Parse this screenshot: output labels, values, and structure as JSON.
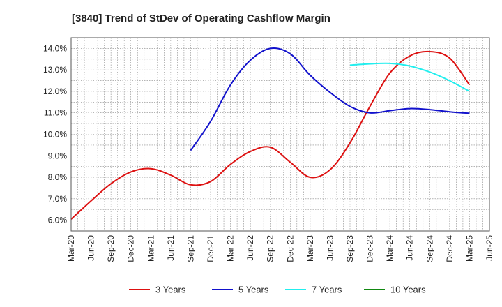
{
  "chart_data": {
    "type": "line",
    "title": "[3840]  Trend of StDev of Operating Cashflow Margin",
    "xlabel": "",
    "ylabel": "",
    "ylim": [
      5.5,
      14.5
    ],
    "y_ticks": [
      6.0,
      7.0,
      8.0,
      9.0,
      10.0,
      11.0,
      12.0,
      13.0,
      14.0
    ],
    "y_tick_labels": [
      "6.0%",
      "7.0%",
      "8.0%",
      "9.0%",
      "10.0%",
      "11.0%",
      "12.0%",
      "13.0%",
      "14.0%"
    ],
    "x_tick_labels": [
      "Mar-20",
      "Jun-20",
      "Sep-20",
      "Dec-20",
      "Mar-21",
      "Jun-21",
      "Sep-21",
      "Dec-21",
      "Mar-22",
      "Jun-22",
      "Sep-22",
      "Dec-22",
      "Mar-23",
      "Jun-23",
      "Sep-23",
      "Dec-23",
      "Mar-24",
      "Jun-24",
      "Sep-24",
      "Dec-24",
      "Mar-25",
      "Jun-25"
    ],
    "grid": true,
    "legend_position": "bottom",
    "series": [
      {
        "name": "3 Years",
        "color": "#dd1111",
        "points": [
          [
            "Mar-20",
            6.05
          ],
          [
            "Jun-20",
            6.9
          ],
          [
            "Sep-20",
            7.7
          ],
          [
            "Dec-20",
            8.25
          ],
          [
            "Mar-21",
            8.4
          ],
          [
            "Jun-21",
            8.1
          ],
          [
            "Sep-21",
            7.65
          ],
          [
            "Dec-21",
            7.8
          ],
          [
            "Mar-22",
            8.6
          ],
          [
            "Jun-22",
            9.2
          ],
          [
            "Sep-22",
            9.4
          ],
          [
            "Dec-22",
            8.7
          ],
          [
            "Mar-23",
            8.0
          ],
          [
            "Jun-23",
            8.35
          ],
          [
            "Sep-23",
            9.6
          ],
          [
            "Dec-23",
            11.3
          ],
          [
            "Mar-24",
            12.85
          ],
          [
            "Jun-24",
            13.65
          ],
          [
            "Sep-24",
            13.85
          ],
          [
            "Dec-24",
            13.55
          ],
          [
            "Mar-25",
            12.3
          ]
        ]
      },
      {
        "name": "5 Years",
        "color": "#1111cc",
        "points": [
          [
            "Sep-21",
            9.25
          ],
          [
            "Dec-21",
            10.6
          ],
          [
            "Mar-22",
            12.3
          ],
          [
            "Jun-22",
            13.45
          ],
          [
            "Sep-22",
            14.0
          ],
          [
            "Dec-22",
            13.75
          ],
          [
            "Mar-23",
            12.75
          ],
          [
            "Jun-23",
            11.95
          ],
          [
            "Sep-23",
            11.3
          ],
          [
            "Dec-23",
            11.0
          ],
          [
            "Mar-24",
            11.1
          ],
          [
            "Jun-24",
            11.2
          ],
          [
            "Sep-24",
            11.15
          ],
          [
            "Dec-24",
            11.05
          ],
          [
            "Mar-25",
            10.98
          ]
        ]
      },
      {
        "name": "7 Years",
        "color": "#22eeee",
        "points": [
          [
            "Sep-23",
            13.22
          ],
          [
            "Dec-23",
            13.28
          ],
          [
            "Mar-24",
            13.3
          ],
          [
            "Jun-24",
            13.18
          ],
          [
            "Sep-24",
            12.9
          ],
          [
            "Dec-24",
            12.5
          ],
          [
            "Mar-25",
            12.0
          ]
        ]
      },
      {
        "name": "10 Years",
        "color": "#118811",
        "points": []
      }
    ]
  }
}
